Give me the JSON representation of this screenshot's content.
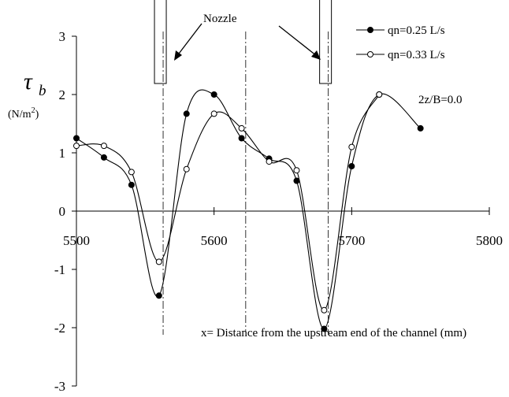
{
  "chart_data": {
    "type": "line",
    "title": "",
    "xlabel": "x= Distance from the upstream end of the channel (mm)",
    "ylabel_symbol": "τ",
    "ylabel_subscript": "b",
    "ylabel_unit": "(N/m",
    "ylabel_unit_sup": "2",
    "ylabel_unit_close": ")",
    "xlim": [
      5500,
      5800
    ],
    "ylim": [
      -3,
      3
    ],
    "xticks": [
      "5500",
      "5600",
      "5700",
      "5800"
    ],
    "yticks": [
      "3",
      "2",
      "1",
      "0",
      "-1",
      "-2",
      "-3"
    ],
    "annotations": {
      "nozzle": "Nozzle",
      "condition": "2z/B=0.0"
    },
    "legend_position": "top-right",
    "series": [
      {
        "name": "qn=0.25 L/s",
        "marker": "filled-circle",
        "x": [
          5500,
          5520,
          5540,
          5560,
          5580,
          5600,
          5620,
          5640,
          5660,
          5680,
          5700,
          5720,
          5750
        ],
        "y": [
          1.25,
          0.92,
          0.45,
          -1.45,
          1.67,
          2.0,
          1.25,
          0.9,
          0.52,
          -2.02,
          0.77,
          2.0,
          1.42
        ]
      },
      {
        "name": "qn=0.33 L/s",
        "marker": "open-circle",
        "x": [
          5500,
          5520,
          5540,
          5560,
          5580,
          5600,
          5620,
          5640,
          5660,
          5680,
          5700,
          5720
        ],
        "y": [
          1.12,
          1.12,
          0.67,
          -0.87,
          0.72,
          1.67,
          1.42,
          0.85,
          0.7,
          -1.7,
          1.1,
          2.0
        ]
      }
    ]
  }
}
